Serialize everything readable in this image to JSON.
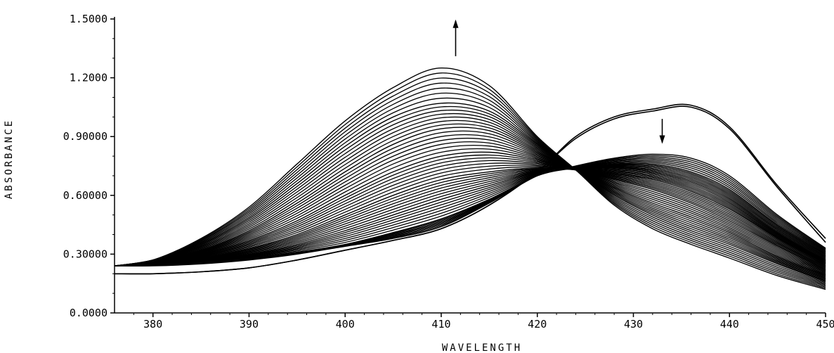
{
  "chart_data": {
    "type": "line",
    "title": "",
    "xlabel": "WAVELENGTH",
    "ylabel": "ABSORBANCE",
    "xlim": [
      376,
      450
    ],
    "ylim": [
      0.0,
      1.5
    ],
    "x_ticks": [
      380,
      390,
      400,
      410,
      420,
      430,
      440,
      450
    ],
    "x_tick_labels": [
      "380",
      "390",
      "400",
      "410",
      "420",
      "430",
      "440",
      "450"
    ],
    "y_ticks": [
      0.0,
      0.3,
      0.6,
      0.9,
      1.2,
      1.5
    ],
    "y_tick_labels": [
      "0.0000",
      "0.30000",
      "0.60000",
      "0.90000",
      "1.2000",
      "1.5000"
    ],
    "grid": false,
    "annotations": [
      {
        "type": "arrow",
        "direction": "up",
        "x": 411.5,
        "y_from": 1.31,
        "y_to": 1.49
      },
      {
        "type": "arrow",
        "direction": "down",
        "x": 433,
        "y_from": 0.99,
        "y_to": 0.87
      }
    ],
    "isosbestic_point": {
      "x": 424.3,
      "y": 0.73
    },
    "x": [
      376,
      380,
      385,
      390,
      395,
      400,
      405,
      410,
      415,
      420,
      424,
      428,
      432,
      436,
      440,
      445,
      450
    ],
    "series": [
      {
        "values": [
          0.2,
          0.2,
          0.21,
          0.23,
          0.27,
          0.32,
          0.37,
          0.43,
          0.55,
          0.72,
          0.9,
          1.0,
          1.04,
          1.06,
          0.95,
          0.65,
          0.38
        ]
      },
      {
        "values": [
          0.2,
          0.2,
          0.21,
          0.23,
          0.27,
          0.32,
          0.37,
          0.43,
          0.55,
          0.72,
          0.89,
          0.99,
          1.03,
          1.05,
          0.94,
          0.64,
          0.36
        ]
      },
      {
        "values": [
          0.24,
          0.24,
          0.25,
          0.27,
          0.3,
          0.34,
          0.38,
          0.44,
          0.56,
          0.7,
          0.75,
          0.79,
          0.81,
          0.79,
          0.7,
          0.5,
          0.33
        ]
      },
      {
        "values": [
          0.24,
          0.25,
          0.26,
          0.28,
          0.31,
          0.35,
          0.41,
          0.48,
          0.58,
          0.7,
          0.74,
          0.76,
          0.76,
          0.72,
          0.63,
          0.45,
          0.3
        ]
      },
      {
        "values": [
          0.24,
          0.25,
          0.27,
          0.3,
          0.35,
          0.42,
          0.5,
          0.58,
          0.65,
          0.72,
          0.74,
          0.74,
          0.72,
          0.67,
          0.58,
          0.41,
          0.27
        ]
      },
      {
        "values": [
          0.24,
          0.25,
          0.28,
          0.33,
          0.4,
          0.5,
          0.6,
          0.68,
          0.72,
          0.74,
          0.73,
          0.71,
          0.68,
          0.62,
          0.53,
          0.38,
          0.25
        ]
      },
      {
        "values": [
          0.24,
          0.26,
          0.3,
          0.37,
          0.47,
          0.6,
          0.72,
          0.8,
          0.82,
          0.78,
          0.73,
          0.68,
          0.63,
          0.56,
          0.47,
          0.34,
          0.22
        ]
      },
      {
        "values": [
          0.24,
          0.26,
          0.32,
          0.42,
          0.56,
          0.72,
          0.86,
          0.94,
          0.93,
          0.82,
          0.73,
          0.64,
          0.56,
          0.49,
          0.41,
          0.29,
          0.19
        ]
      },
      {
        "values": [
          0.24,
          0.27,
          0.35,
          0.48,
          0.66,
          0.85,
          1.0,
          1.07,
          1.03,
          0.86,
          0.73,
          0.6,
          0.5,
          0.42,
          0.35,
          0.25,
          0.16
        ]
      },
      {
        "values": [
          0.24,
          0.27,
          0.38,
          0.54,
          0.76,
          0.98,
          1.15,
          1.25,
          1.16,
          0.9,
          0.73,
          0.55,
          0.43,
          0.35,
          0.28,
          0.19,
          0.12
        ]
      }
    ]
  }
}
